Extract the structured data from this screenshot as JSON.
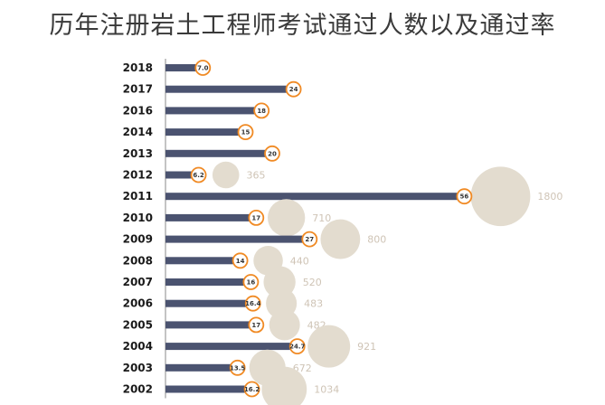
{
  "title": "历年注册岩土工程师考试通过人数以及通过率",
  "colors": {
    "bar": "#4b5370",
    "axis": "#8a8a8a",
    "marker_stroke": "#f08a24",
    "bubble": "#e3dccf",
    "count_label": "#cfc4b6"
  },
  "chart_data": {
    "type": "bar",
    "orientation": "horizontal",
    "title": "历年注册岩土工程师考试通过人数以及通过率",
    "categories": [
      "2018",
      "2017",
      "2016",
      "2014",
      "2013",
      "2012",
      "2011",
      "2010",
      "2009",
      "2008",
      "2007",
      "2006",
      "2005",
      "2004",
      "2003",
      "2002"
    ],
    "series": [
      {
        "values": [
          7.0,
          24,
          18,
          15,
          20,
          6.2,
          56,
          17,
          27,
          14,
          16,
          16.4,
          17,
          24.7,
          13.5,
          16.2
        ],
        "labels": [
          "7.0",
          "24",
          "18",
          "15",
          "20",
          "6.2",
          "56",
          "17",
          "27",
          "14",
          "16",
          "16.4",
          "17",
          "24.7",
          "13.5",
          "16.2"
        ]
      },
      {
        "values": [
          null,
          null,
          null,
          null,
          null,
          365,
          1800,
          710,
          800,
          440,
          520,
          483,
          482,
          921,
          672,
          1034
        ],
        "labels": [
          "",
          "",
          "",
          "",
          "",
          "365",
          "1800",
          "710",
          "800",
          "440",
          "520",
          "483",
          "482",
          "921",
          "672",
          "1034"
        ]
      }
    ]
  }
}
